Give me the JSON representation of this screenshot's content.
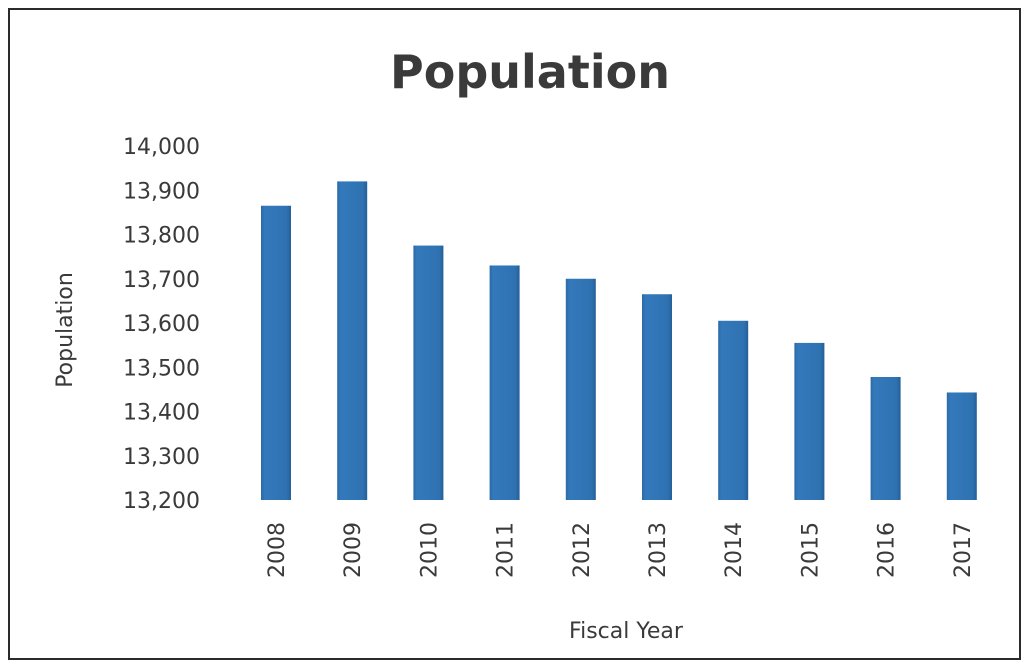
{
  "chart_data": {
    "type": "bar",
    "title": "Population",
    "xlabel": "Fiscal Year",
    "ylabel": "Population",
    "categories": [
      "2008",
      "2009",
      "2010",
      "2011",
      "2012",
      "2013",
      "2014",
      "2015",
      "2016",
      "2017"
    ],
    "values": [
      13865,
      13920,
      13775,
      13730,
      13700,
      13665,
      13605,
      13555,
      13478,
      13443
    ],
    "ylim": [
      13200,
      14000
    ],
    "yticks": [
      "14,000",
      "13,900",
      "13,800",
      "13,700",
      "13,600",
      "13,500",
      "13,400",
      "13,300",
      "13,200"
    ],
    "bar_color": "#2e75b6",
    "grid": false,
    "legend": "none"
  }
}
